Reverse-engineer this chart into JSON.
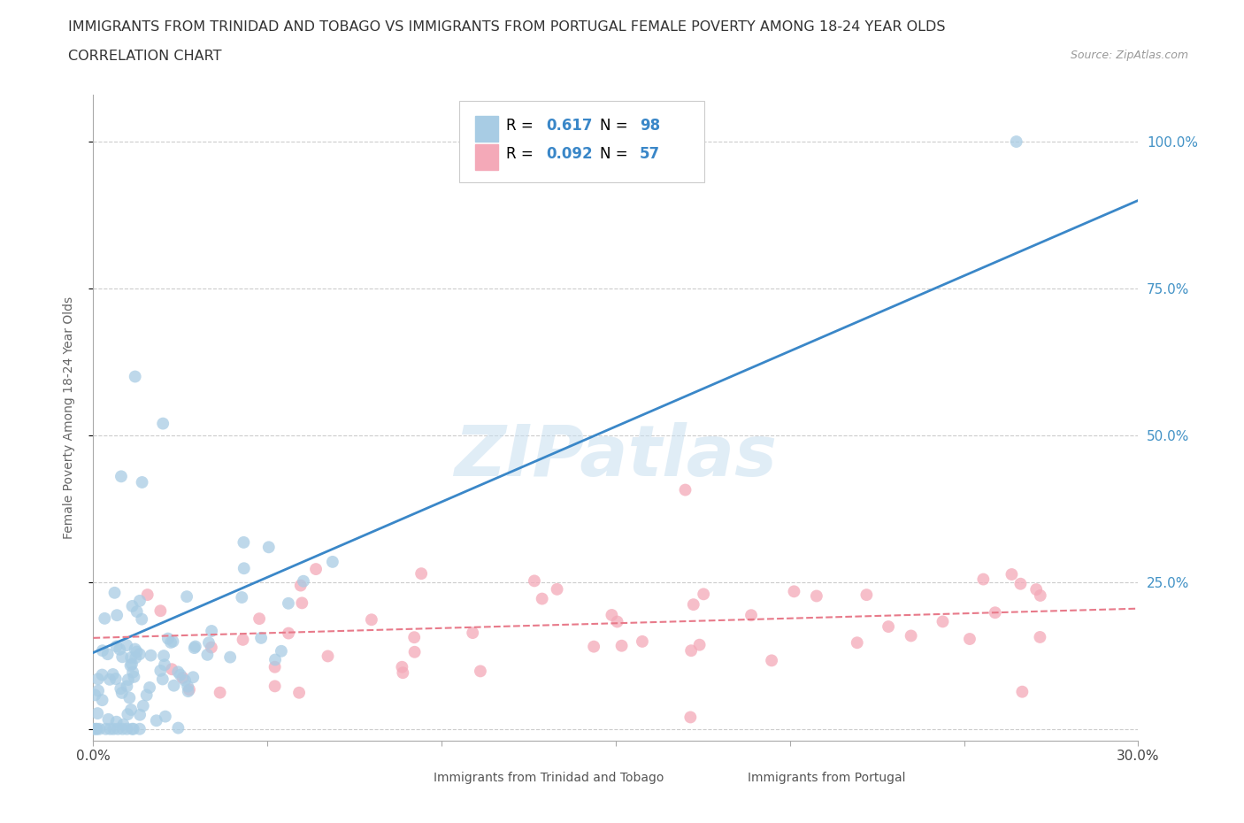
{
  "title_line1": "IMMIGRANTS FROM TRINIDAD AND TOBAGO VS IMMIGRANTS FROM PORTUGAL FEMALE POVERTY AMONG 18-24 YEAR OLDS",
  "title_line2": "CORRELATION CHART",
  "source_text": "Source: ZipAtlas.com",
  "ylabel": "Female Poverty Among 18-24 Year Olds",
  "watermark": "ZIPatlas",
  "series1": {
    "label": "Immigrants from Trinidad and Tobago",
    "color": "#a8cce4",
    "R": 0.617,
    "N": 98,
    "reg_color": "#3a87c8"
  },
  "series2": {
    "label": "Immigrants from Portugal",
    "color": "#f4a9b8",
    "R": 0.092,
    "N": 57,
    "reg_color": "#e87a8a"
  },
  "xlim": [
    0.0,
    0.3
  ],
  "ylim": [
    -0.02,
    1.08
  ],
  "xticks": [
    0.0,
    0.05,
    0.1,
    0.15,
    0.2,
    0.25,
    0.3
  ],
  "yticks": [
    0.0,
    0.25,
    0.5,
    0.75,
    1.0
  ],
  "xtick_labels": [
    "0.0%",
    "",
    "",
    "",
    "",
    "",
    "30.0%"
  ],
  "ytick_labels_right": [
    "",
    "25.0%",
    "50.0%",
    "75.0%",
    "100.0%"
  ],
  "background_color": "#ffffff",
  "grid_color": "#cccccc",
  "title_fontsize": 11.5,
  "legend_R_color": "#3a87c8",
  "legend_N_color": "#3a87c8"
}
